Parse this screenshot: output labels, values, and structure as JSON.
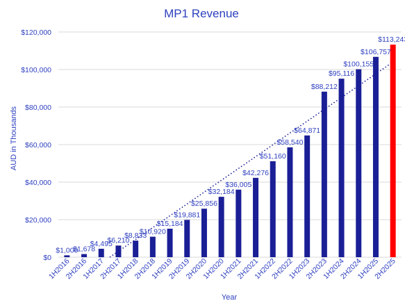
{
  "chart_data": {
    "type": "bar",
    "title": "MP1 Revenue",
    "xlabel": "Year",
    "ylabel": "AUD in Thousands",
    "ylim": [
      0,
      120000
    ],
    "yticks": [
      0,
      20000,
      40000,
      60000,
      80000,
      100000,
      120000
    ],
    "ytick_labels": [
      "$0",
      "$20,000",
      "$40,000",
      "$60,000",
      "$80,000",
      "$100,000",
      "$120,000"
    ],
    "grid": true,
    "legend": "none",
    "trendline": "linear, dotted",
    "categories": [
      "1H2016",
      "2H2016",
      "1H2017",
      "2H2017",
      "1H2018",
      "2H2018",
      "1H2019",
      "2H2019",
      "2H2020",
      "1H2020",
      "1H2021",
      "2H2021",
      "1H2022",
      "2H2022",
      "1H2023",
      "2H2023",
      "1H2024",
      "2H2024",
      "1H2025",
      "2H2025"
    ],
    "values": [
      1000,
      1678,
      4495,
      6210,
      8833,
      10920,
      15184,
      19881,
      25856,
      32184,
      36005,
      42276,
      51160,
      58540,
      64871,
      88212,
      95116,
      100155,
      106757,
      113243
    ],
    "data_labels": [
      "$1,000",
      "$1,678",
      "$4,495",
      "$6,210",
      "$8,833",
      "$10,920",
      "$15,184",
      "$19,881",
      "$25,856",
      "$32,184",
      "$36,005",
      "$42,276",
      "$51,160",
      "$58,540",
      "$64,871",
      "$88,212",
      "$95,116",
      "$100,155",
      "$106,757",
      "$113,243"
    ],
    "colors": {
      "bar": "#1a1f96",
      "highlight_bar": "#ff0000",
      "highlight_index": 19,
      "text": "#2d3fbf",
      "trend": "#1a1f96"
    }
  }
}
